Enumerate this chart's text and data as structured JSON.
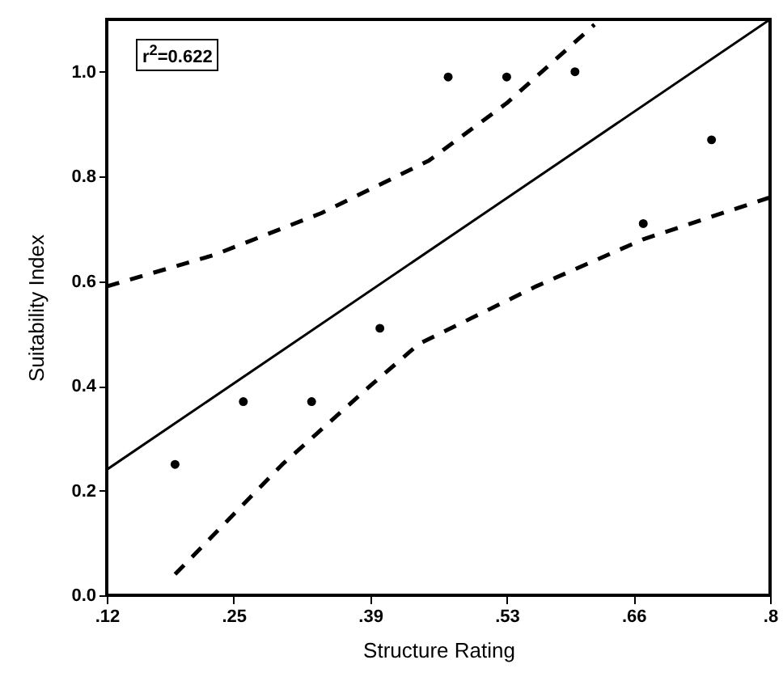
{
  "chart_data": {
    "type": "scatter",
    "xlabel": "Structure Rating",
    "ylabel": "Suitability Index",
    "annotations": [
      "r$^{2}$=0.622"
    ],
    "xlim": [
      0.12,
      0.8
    ],
    "ylim": [
      0,
      1.1
    ],
    "xticks": [
      {
        "value": 0.12,
        "label": ".12"
      },
      {
        "value": 0.25,
        "label": ".25"
      },
      {
        "value": 0.39,
        "label": ".39"
      },
      {
        "value": 0.53,
        "label": ".53"
      },
      {
        "value": 0.66,
        "label": ".66"
      },
      {
        "value": 0.8,
        "label": ".8"
      }
    ],
    "yticks": [
      {
        "value": 0,
        "label": "0.0"
      },
      {
        "value": 0.2,
        "label": "0.2"
      },
      {
        "value": 0.4,
        "label": "0.4"
      },
      {
        "value": 0.6,
        "label": "0.6"
      },
      {
        "value": 0.8,
        "label": "0.8"
      },
      {
        "value": 1,
        "label": "1.0"
      }
    ],
    "grid": false,
    "series": [
      {
        "color": "#000000",
        "marker": "circle",
        "x": [
          0.19,
          0.26,
          0.33,
          0.4,
          0.47,
          0.53,
          0.6,
          0.67,
          0.74
        ],
        "values": [
          0.25,
          0.37,
          0.37,
          0.51,
          0.99,
          0.99,
          1.0,
          0.71,
          0.87
        ]
      },
      {
        "type": "line",
        "color": "#000000",
        "line_style": "solid",
        "marker": "none",
        "x": [
          0.12,
          0.8
        ],
        "values": [
          0.24,
          1.1
        ]
      },
      {
        "type": "line",
        "color": "#000000",
        "line_style": "dashed",
        "marker": "none",
        "x": [
          0.12,
          0.23,
          0.34,
          0.45,
          0.53,
          0.62
        ],
        "values": [
          0.59,
          0.65,
          0.73,
          0.83,
          0.94,
          1.09
        ]
      },
      {
        "type": "line",
        "color": "#000000",
        "line_style": "dashed",
        "marker": "none",
        "x": [
          0.19,
          0.3,
          0.39,
          0.44,
          0.56,
          0.67,
          0.8
        ],
        "values": [
          0.04,
          0.25,
          0.4,
          0.48,
          0.59,
          0.68,
          0.76
        ]
      }
    ]
  }
}
